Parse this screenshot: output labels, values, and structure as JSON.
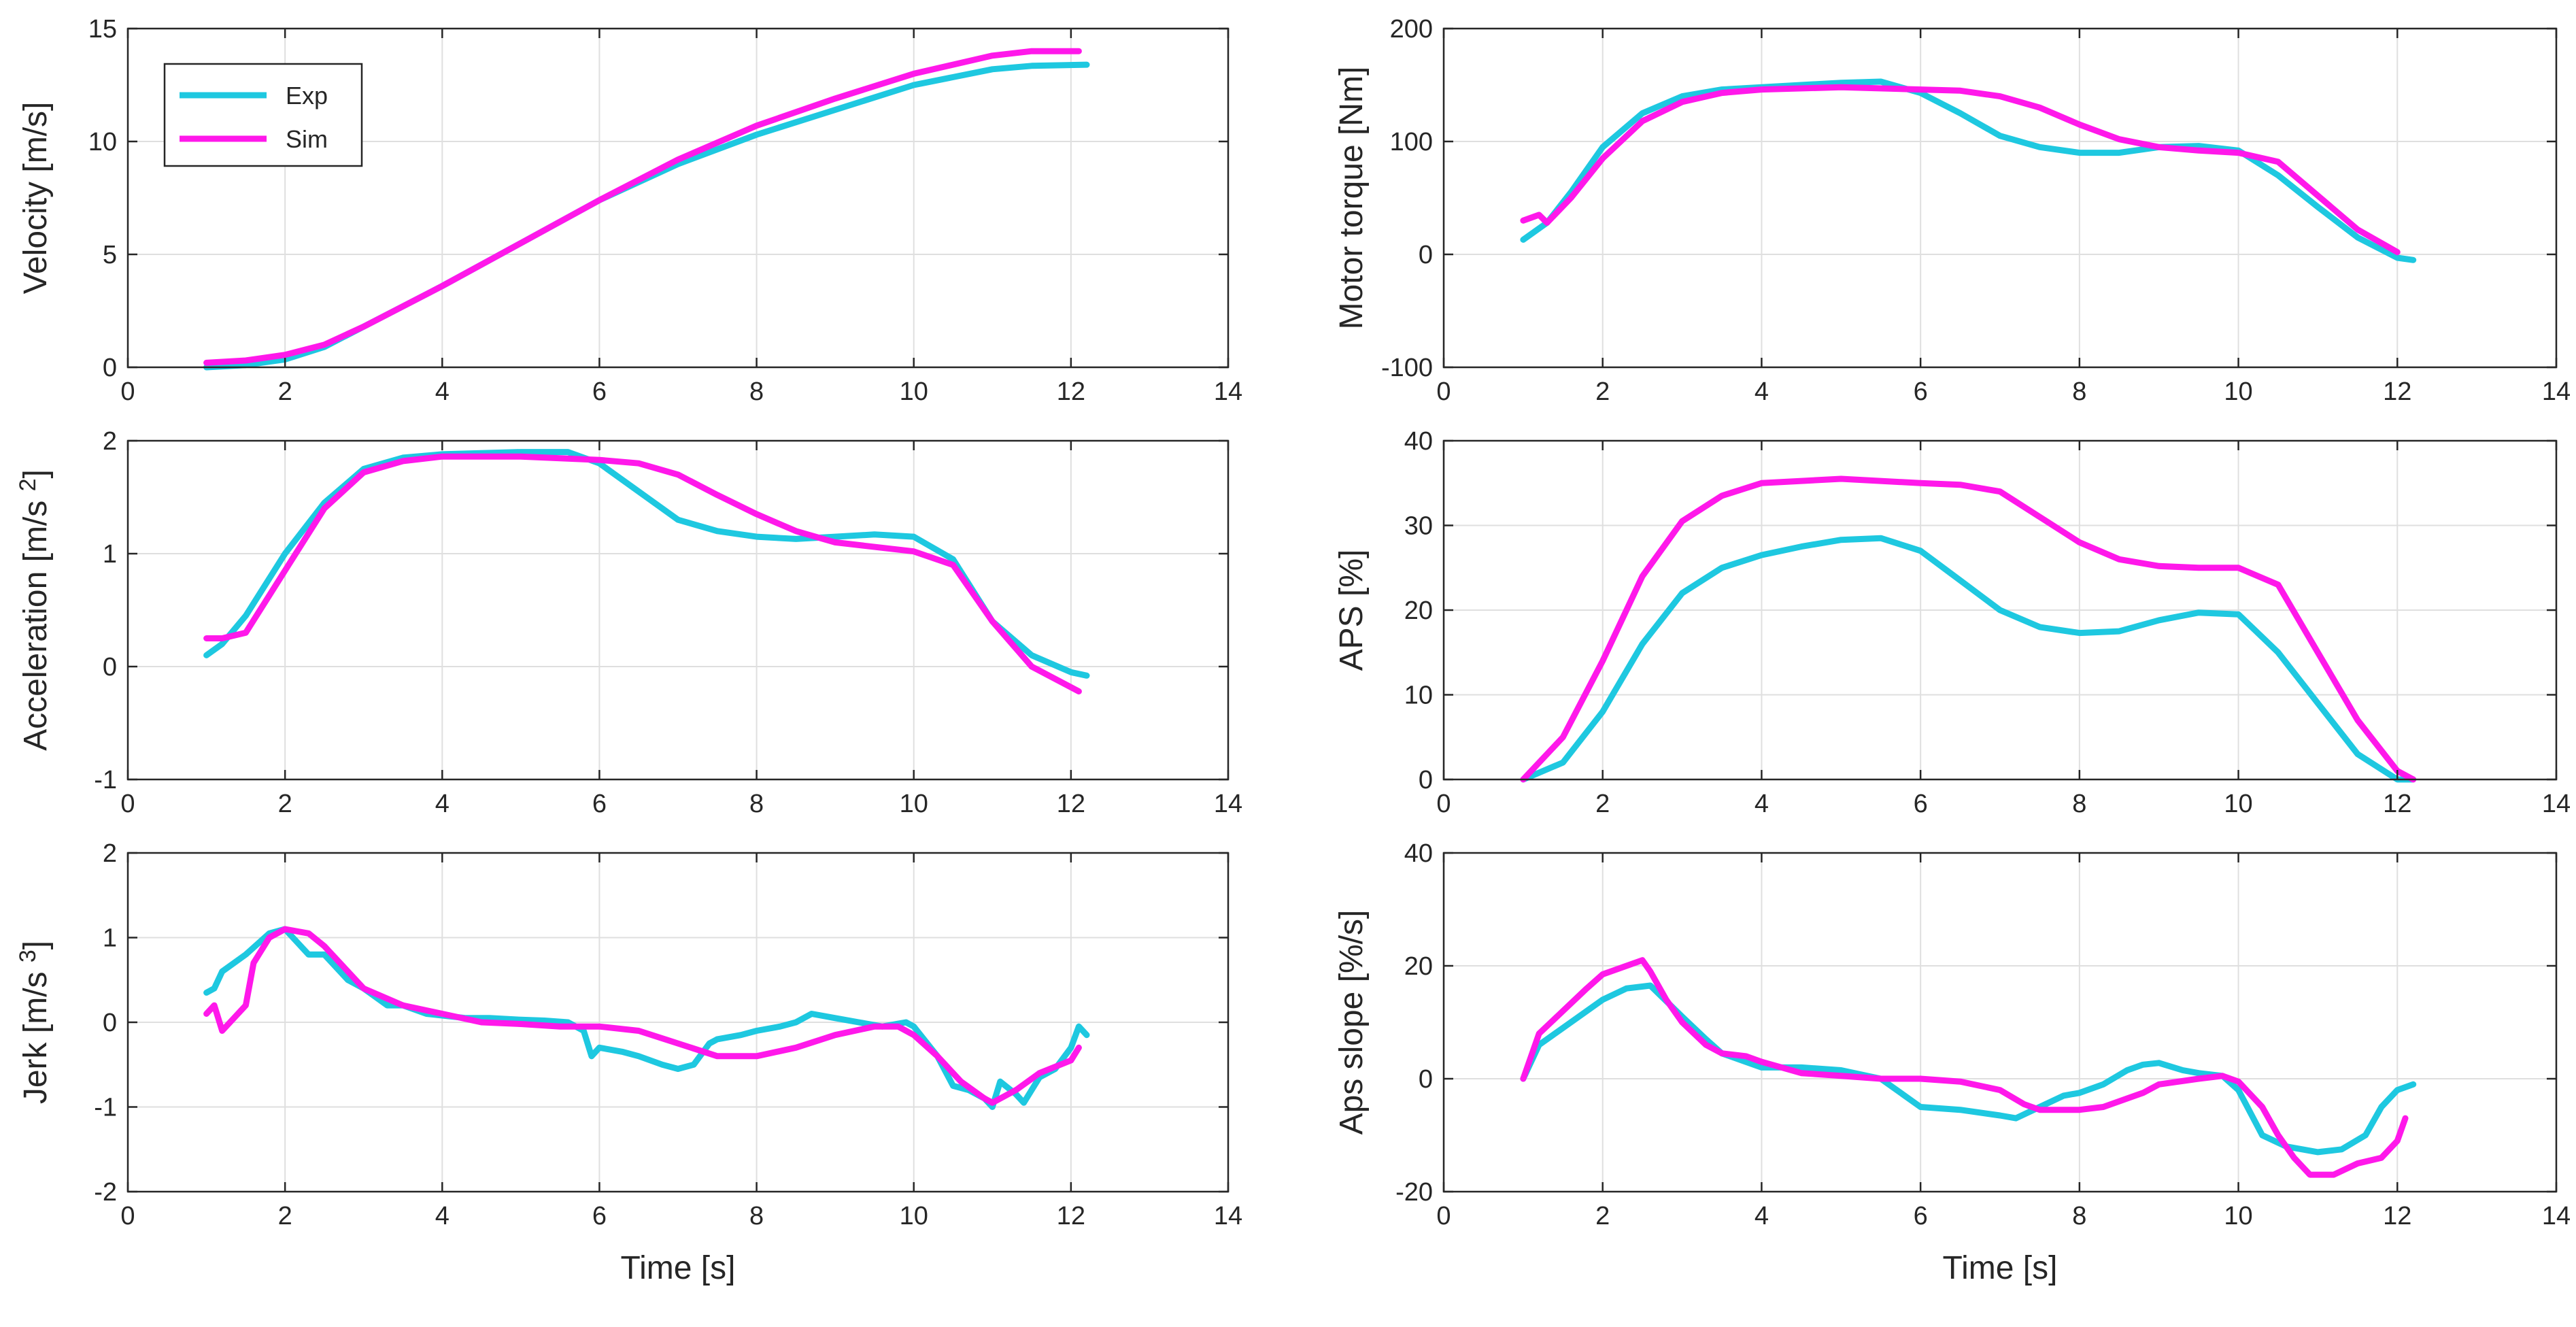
{
  "colors": {
    "exp": "#1ec8e0",
    "sim": "#ff18ea"
  },
  "legend": {
    "items": [
      "Exp",
      "Sim"
    ],
    "location": "top-left",
    "panel": "velocity"
  },
  "chart_data": [
    {
      "id": "velocity",
      "type": "line",
      "position": "top-left",
      "xlabel": "",
      "ylabel": "Velocity [m/s]",
      "xlim": [
        0,
        14
      ],
      "ylim": [
        0,
        15
      ],
      "xticks": [
        "0",
        "2",
        "4",
        "6",
        "8",
        "10",
        "12",
        "14"
      ],
      "yticks": [
        "0",
        "5",
        "10",
        "15"
      ],
      "series": [
        {
          "name": "Exp",
          "color": "#1ec8e0",
          "x": [
            1.0,
            1.5,
            2.0,
            2.5,
            3.0,
            4.0,
            5.0,
            6.0,
            7.0,
            8.0,
            9.0,
            10.0,
            11.0,
            11.5,
            12.2
          ],
          "y": [
            0.0,
            0.1,
            0.35,
            0.9,
            1.8,
            3.6,
            5.5,
            7.4,
            9.0,
            10.3,
            11.4,
            12.5,
            13.2,
            13.35,
            13.4
          ]
        },
        {
          "name": "Sim",
          "color": "#ff18ea",
          "x": [
            1.0,
            1.5,
            2.0,
            2.5,
            3.0,
            4.0,
            5.0,
            6.0,
            7.0,
            8.0,
            9.0,
            10.0,
            11.0,
            11.5,
            12.1
          ],
          "y": [
            0.2,
            0.3,
            0.55,
            1.0,
            1.8,
            3.6,
            5.5,
            7.4,
            9.2,
            10.7,
            11.9,
            13.0,
            13.8,
            14.0,
            14.0
          ]
        }
      ]
    },
    {
      "id": "motor-torque",
      "type": "line",
      "position": "top-right",
      "xlabel": "",
      "ylabel": "Motor torque [Nm]",
      "xlim": [
        0,
        14
      ],
      "ylim": [
        -100,
        200
      ],
      "xticks": [
        "0",
        "2",
        "4",
        "6",
        "8",
        "10",
        "12",
        "14"
      ],
      "yticks": [
        "-100",
        "0",
        "100",
        "200"
      ],
      "series": [
        {
          "name": "Exp",
          "color": "#1ec8e0",
          "x": [
            1.0,
            1.3,
            1.6,
            2.0,
            2.5,
            3.0,
            3.5,
            4.0,
            5.0,
            5.5,
            6.0,
            6.5,
            7.0,
            7.5,
            8.0,
            8.5,
            9.0,
            9.5,
            10.0,
            10.5,
            11.0,
            11.5,
            12.0,
            12.2
          ],
          "y": [
            13,
            28,
            55,
            95,
            125,
            140,
            146,
            148,
            152,
            153,
            143,
            125,
            105,
            95,
            90,
            90,
            95,
            96,
            92,
            70,
            42,
            15,
            -3,
            -5
          ]
        },
        {
          "name": "Sim",
          "color": "#ff18ea",
          "x": [
            1.0,
            1.2,
            1.3,
            1.6,
            2.0,
            2.5,
            3.0,
            3.5,
            4.0,
            5.0,
            6.0,
            6.5,
            7.0,
            7.5,
            8.0,
            8.5,
            9.0,
            9.5,
            10.0,
            10.5,
            11.0,
            11.5,
            12.0
          ],
          "y": [
            30,
            35,
            28,
            50,
            85,
            118,
            135,
            143,
            146,
            148,
            146,
            145,
            140,
            130,
            115,
            102,
            95,
            92,
            90,
            82,
            52,
            22,
            2
          ]
        }
      ]
    },
    {
      "id": "acceleration",
      "type": "line",
      "position": "middle-left",
      "xlabel": "",
      "ylabel": "Acceleration [m/s^2]",
      "xlim": [
        0,
        14
      ],
      "ylim": [
        -1,
        2
      ],
      "xticks": [
        "0",
        "2",
        "4",
        "6",
        "8",
        "10",
        "12",
        "14"
      ],
      "yticks": [
        "-1",
        "0",
        "1",
        "2"
      ],
      "series": [
        {
          "name": "Exp",
          "color": "#1ec8e0",
          "x": [
            1.0,
            1.2,
            1.5,
            2.0,
            2.5,
            3.0,
            3.5,
            4.0,
            5.0,
            5.6,
            6.0,
            6.5,
            7.0,
            7.5,
            8.0,
            8.5,
            9.0,
            9.5,
            10.0,
            10.5,
            11.0,
            11.5,
            12.0,
            12.2
          ],
          "y": [
            0.1,
            0.2,
            0.45,
            1.0,
            1.45,
            1.75,
            1.85,
            1.88,
            1.9,
            1.9,
            1.8,
            1.55,
            1.3,
            1.2,
            1.15,
            1.13,
            1.15,
            1.17,
            1.15,
            0.95,
            0.4,
            0.1,
            -0.05,
            -0.08
          ]
        },
        {
          "name": "Sim",
          "color": "#ff18ea",
          "x": [
            1.0,
            1.2,
            1.5,
            2.0,
            2.5,
            3.0,
            3.5,
            4.0,
            5.0,
            6.0,
            6.5,
            7.0,
            7.5,
            8.0,
            8.5,
            9.0,
            10.0,
            10.5,
            11.0,
            11.5,
            12.1
          ],
          "y": [
            0.25,
            0.25,
            0.3,
            0.85,
            1.4,
            1.72,
            1.82,
            1.86,
            1.86,
            1.83,
            1.8,
            1.7,
            1.52,
            1.35,
            1.2,
            1.1,
            1.02,
            0.9,
            0.4,
            0.0,
            -0.22
          ]
        }
      ]
    },
    {
      "id": "aps",
      "type": "line",
      "position": "middle-right",
      "xlabel": "",
      "ylabel": "APS [%]",
      "xlim": [
        0,
        14
      ],
      "ylim": [
        0,
        40
      ],
      "xticks": [
        "0",
        "2",
        "4",
        "6",
        "8",
        "10",
        "12",
        "14"
      ],
      "yticks": [
        "0",
        "10",
        "20",
        "30",
        "40"
      ],
      "series": [
        {
          "name": "Exp",
          "color": "#1ec8e0",
          "x": [
            1.0,
            1.5,
            2.0,
            2.5,
            3.0,
            3.5,
            4.0,
            4.5,
            5.0,
            5.5,
            6.0,
            6.5,
            7.0,
            7.5,
            8.0,
            8.5,
            9.0,
            9.5,
            10.0,
            10.5,
            11.0,
            11.5,
            12.0,
            12.2
          ],
          "y": [
            0,
            2,
            8,
            16,
            22,
            25,
            26.5,
            27.5,
            28.3,
            28.5,
            27,
            23.5,
            20,
            18,
            17.3,
            17.5,
            18.8,
            19.7,
            19.5,
            15,
            9,
            3,
            0,
            0
          ]
        },
        {
          "name": "Sim",
          "color": "#ff18ea",
          "x": [
            1.0,
            1.5,
            2.0,
            2.5,
            3.0,
            3.5,
            4.0,
            5.0,
            6.0,
            6.5,
            7.0,
            7.5,
            8.0,
            8.5,
            9.0,
            9.5,
            10.0,
            10.5,
            11.0,
            11.5,
            12.0,
            12.2
          ],
          "y": [
            0,
            5,
            14,
            24,
            30.5,
            33.5,
            35,
            35.5,
            35,
            34.8,
            34,
            31,
            28,
            26,
            25.2,
            25,
            25,
            23,
            15,
            7,
            1,
            0
          ]
        }
      ]
    },
    {
      "id": "jerk",
      "type": "line",
      "position": "bottom-left",
      "xlabel": "Time [s]",
      "ylabel": "Jerk [m/s^3]",
      "xlim": [
        0,
        14
      ],
      "ylim": [
        -2,
        2
      ],
      "xticks": [
        "0",
        "2",
        "4",
        "6",
        "8",
        "10",
        "12",
        "14"
      ],
      "yticks": [
        "-2",
        "-1",
        "0",
        "1",
        "2"
      ],
      "series": [
        {
          "name": "Exp",
          "color": "#1ec8e0",
          "x": [
            1.0,
            1.1,
            1.2,
            1.5,
            1.8,
            2.0,
            2.1,
            2.3,
            2.5,
            2.8,
            3.0,
            3.3,
            3.5,
            3.8,
            4.0,
            4.3,
            4.6,
            5.0,
            5.3,
            5.6,
            5.8,
            5.9,
            6.0,
            6.3,
            6.5,
            6.8,
            7.0,
            7.2,
            7.4,
            7.5,
            7.8,
            8.0,
            8.3,
            8.5,
            8.7,
            9.0,
            9.3,
            9.6,
            9.9,
            10.0,
            10.3,
            10.5,
            10.7,
            10.9,
            11.0,
            11.1,
            11.3,
            11.4,
            11.6,
            11.8,
            12.0,
            12.1,
            12.2
          ],
          "y": [
            0.35,
            0.4,
            0.6,
            0.8,
            1.05,
            1.1,
            1.0,
            0.8,
            0.8,
            0.5,
            0.4,
            0.2,
            0.2,
            0.1,
            0.08,
            0.05,
            0.05,
            0.03,
            0.02,
            0.0,
            -0.1,
            -0.4,
            -0.3,
            -0.35,
            -0.4,
            -0.5,
            -0.55,
            -0.5,
            -0.25,
            -0.2,
            -0.15,
            -0.1,
            -0.05,
            0.0,
            0.1,
            0.05,
            0.0,
            -0.05,
            0.0,
            -0.05,
            -0.4,
            -0.75,
            -0.8,
            -0.9,
            -1.0,
            -0.7,
            -0.85,
            -0.95,
            -0.65,
            -0.55,
            -0.3,
            -0.05,
            -0.15
          ]
        },
        {
          "name": "Sim",
          "color": "#ff18ea",
          "x": [
            1.0,
            1.1,
            1.2,
            1.5,
            1.6,
            1.8,
            2.0,
            2.3,
            2.5,
            2.8,
            3.0,
            3.5,
            4.0,
            4.5,
            5.0,
            5.5,
            6.0,
            6.5,
            7.0,
            7.5,
            8.0,
            8.5,
            9.0,
            9.5,
            9.8,
            10.0,
            10.3,
            10.6,
            10.9,
            11.0,
            11.3,
            11.6,
            12.0,
            12.1
          ],
          "y": [
            0.1,
            0.2,
            -0.1,
            0.2,
            0.7,
            1.0,
            1.1,
            1.05,
            0.9,
            0.6,
            0.4,
            0.2,
            0.1,
            0.0,
            -0.02,
            -0.05,
            -0.05,
            -0.1,
            -0.25,
            -0.4,
            -0.4,
            -0.3,
            -0.15,
            -0.05,
            -0.05,
            -0.15,
            -0.4,
            -0.7,
            -0.9,
            -0.95,
            -0.8,
            -0.6,
            -0.45,
            -0.3
          ]
        }
      ]
    },
    {
      "id": "aps-slope",
      "type": "line",
      "position": "bottom-right",
      "xlabel": "Time [s]",
      "ylabel": "Aps slope [%/s]",
      "xlim": [
        0,
        14
      ],
      "ylim": [
        -20,
        40
      ],
      "xticks": [
        "0",
        "2",
        "4",
        "6",
        "8",
        "10",
        "12",
        "14"
      ],
      "yticks": [
        "-20",
        "0",
        "20",
        "40"
      ],
      "series": [
        {
          "name": "Exp",
          "color": "#1ec8e0",
          "x": [
            1.0,
            1.2,
            1.5,
            1.8,
            2.0,
            2.3,
            2.6,
            3.0,
            3.3,
            3.5,
            3.8,
            4.0,
            4.5,
            5.0,
            5.5,
            5.8,
            6.0,
            6.5,
            7.0,
            7.2,
            7.5,
            7.8,
            8.0,
            8.3,
            8.6,
            8.8,
            9.0,
            9.3,
            9.5,
            9.8,
            10.0,
            10.3,
            10.6,
            11.0,
            11.3,
            11.6,
            11.8,
            12.0,
            12.2
          ],
          "y": [
            0,
            6,
            9,
            12,
            14,
            16,
            16.5,
            11,
            7,
            4.5,
            3,
            2,
            2,
            1.5,
            0,
            -3,
            -5,
            -5.5,
            -6.5,
            -7,
            -5,
            -3,
            -2.5,
            -1,
            1.5,
            2.5,
            2.8,
            1.5,
            1,
            0.5,
            -2,
            -10,
            -12,
            -13,
            -12.5,
            -10,
            -5,
            -2,
            -1
          ]
        },
        {
          "name": "Sim",
          "color": "#ff18ea",
          "x": [
            1.0,
            1.2,
            1.5,
            1.8,
            2.0,
            2.3,
            2.5,
            2.6,
            2.8,
            3.0,
            3.3,
            3.5,
            3.8,
            4.0,
            4.5,
            5.0,
            5.5,
            6.0,
            6.5,
            7.0,
            7.3,
            7.5,
            8.0,
            8.3,
            8.6,
            8.8,
            9.0,
            9.5,
            9.8,
            10.0,
            10.3,
            10.5,
            10.7,
            10.9,
            11.2,
            11.5,
            11.8,
            12.0,
            12.1
          ],
          "y": [
            0,
            8,
            12,
            16,
            18.5,
            20,
            21,
            19,
            14,
            10,
            6,
            4.5,
            4,
            3,
            1,
            0.5,
            0,
            0,
            -0.5,
            -2,
            -4.5,
            -5.5,
            -5.5,
            -5,
            -3.5,
            -2.5,
            -1,
            0,
            0.5,
            -0.5,
            -5,
            -10,
            -14,
            -17,
            -17,
            -15,
            -14,
            -11,
            -7
          ]
        }
      ]
    }
  ]
}
